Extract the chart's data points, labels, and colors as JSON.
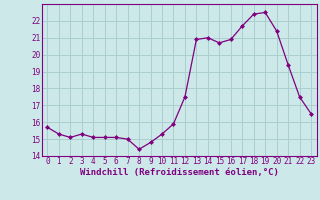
{
  "x": [
    0,
    1,
    2,
    3,
    4,
    5,
    6,
    7,
    8,
    9,
    10,
    11,
    12,
    13,
    14,
    15,
    16,
    17,
    18,
    19,
    20,
    21,
    22,
    23
  ],
  "y": [
    15.7,
    15.3,
    15.1,
    15.3,
    15.1,
    15.1,
    15.1,
    15.0,
    14.4,
    14.8,
    15.3,
    15.9,
    17.5,
    20.9,
    21.0,
    20.7,
    20.9,
    21.7,
    22.4,
    22.5,
    21.4,
    19.4,
    17.5,
    16.5
  ],
  "line_color": "#800080",
  "marker": "D",
  "marker_size": 2.0,
  "bg_color": "#cce8e8",
  "grid_color": "#aacece",
  "xlabel": "Windchill (Refroidissement éolien,°C)",
  "ylim": [
    14,
    23
  ],
  "xlim": [
    -0.5,
    23.5
  ],
  "yticks": [
    14,
    15,
    16,
    17,
    18,
    19,
    20,
    21,
    22
  ],
  "xticks": [
    0,
    1,
    2,
    3,
    4,
    5,
    6,
    7,
    8,
    9,
    10,
    11,
    12,
    13,
    14,
    15,
    16,
    17,
    18,
    19,
    20,
    21,
    22,
    23
  ],
  "tick_color": "#800080",
  "tick_fontsize": 5.5,
  "xlabel_fontsize": 6.5,
  "spine_color": "#800080"
}
